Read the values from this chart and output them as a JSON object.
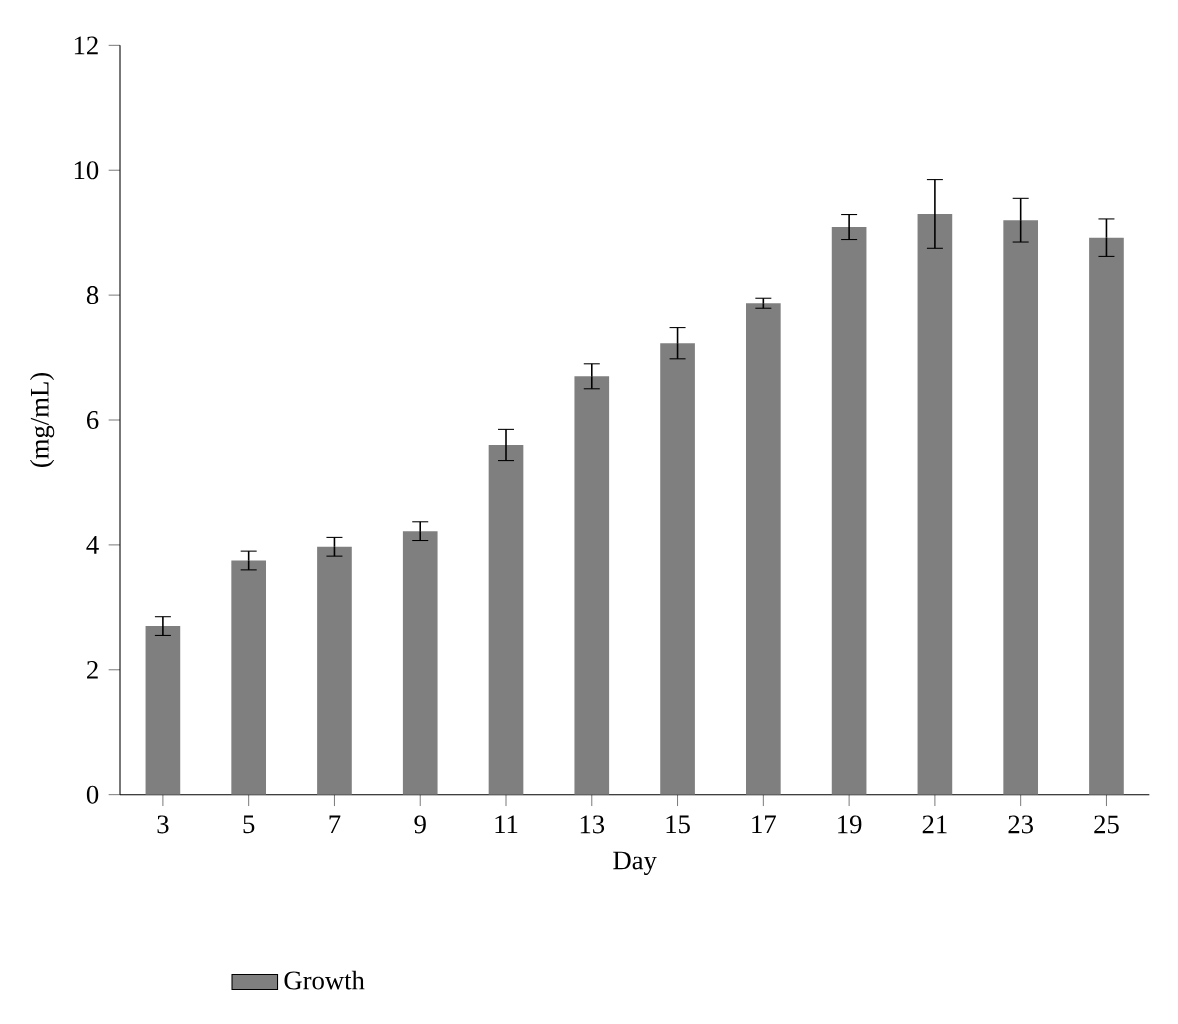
{
  "chart_data": {
    "type": "bar",
    "xlabel": "Day",
    "ylabel": "(mg/mL)",
    "categories": [
      "3",
      "5",
      "7",
      "9",
      "11",
      "13",
      "15",
      "17",
      "19",
      "21",
      "23",
      "25"
    ],
    "series": [
      {
        "name": "Growth",
        "color": "#7f7f7f",
        "values": [
          2.7,
          3.75,
          3.97,
          4.22,
          5.6,
          6.7,
          7.23,
          7.87,
          9.09,
          9.3,
          9.2,
          8.92
        ],
        "errors": [
          0.15,
          0.15,
          0.15,
          0.15,
          0.25,
          0.2,
          0.25,
          0.08,
          0.2,
          0.55,
          0.35,
          0.3
        ]
      }
    ],
    "ylim": [
      0,
      12
    ],
    "yticks": [
      0,
      2,
      4,
      6,
      8,
      10,
      12
    ],
    "grid": false,
    "legend": "bottom left"
  }
}
